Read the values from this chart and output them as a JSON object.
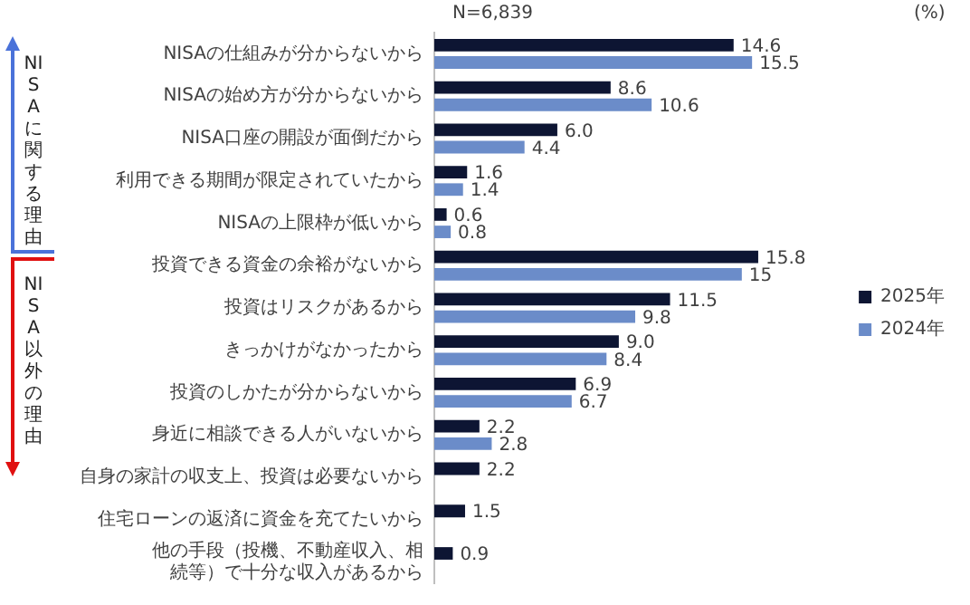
{
  "chart_data": {
    "type": "bar",
    "orientation": "horizontal",
    "categories": [
      "NISAの仕組みが分からないから",
      "NISAの始め方が分からないから",
      "NISA口座の開設が面倒だから",
      "利用できる期間が限定されていたから",
      "NISAの上限枠が低いから",
      "投資できる資金の余裕がないから",
      "投資はリスクがあるから",
      "きっかけがなかったから",
      "投資のしかたが分からないから",
      "身近に相談できる人がいないから",
      "自身の家計の収支上、投資は必要ないから",
      "住宅ローンの返済に資金を充てたいから",
      "他の手段（投機、不動産収入、相続等）で十分な収入があるから"
    ],
    "series": [
      {
        "name": "2025年",
        "color": "#0d1533",
        "values": [
          14.6,
          8.6,
          6.0,
          1.6,
          0.6,
          15.8,
          11.5,
          9.0,
          6.9,
          2.2,
          2.2,
          1.5,
          0.9
        ],
        "value_labels": [
          "14.6",
          "8.6",
          "6.0",
          "1.6",
          "0.6",
          "15.8",
          "11.5",
          "9.0",
          "6.9",
          "2.2",
          "2.2",
          "1.5",
          "0.9"
        ]
      },
      {
        "name": "2024年",
        "color": "#6b8cc9",
        "values": [
          15.5,
          10.6,
          4.4,
          1.4,
          0.8,
          15,
          9.8,
          8.4,
          6.7,
          2.8,
          null,
          null,
          null
        ],
        "value_labels": [
          "15.5",
          "10.6",
          "4.4",
          "1.4",
          "0.8",
          "15",
          "9.8",
          "8.4",
          "6.7",
          "2.8",
          null,
          null,
          null
        ]
      }
    ],
    "annotations": [
      "N=6,839",
      "(%)",
      "NISAに関する理由",
      "NISA以外の理由"
    ],
    "legend": "right",
    "grid": false,
    "tick_labels": "y"
  }
}
